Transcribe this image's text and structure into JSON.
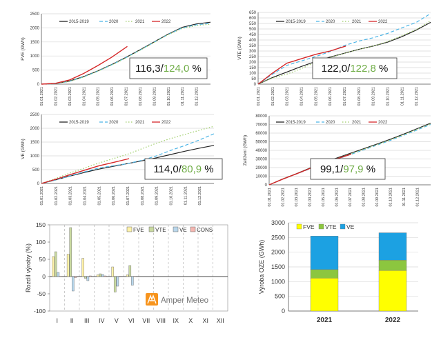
{
  "colors": {
    "s2015": "#222222",
    "s2020": "#4bb4e6",
    "s2021": "#9ccc65",
    "s2022": "#d62728",
    "fve_bar": "#fff2a8",
    "vte_bar": "#c9d9a0",
    "ve_bar": "#b9d7ec",
    "cons_bar": "#f5b7b1",
    "stack_fve": "#ffff00",
    "stack_vte": "#8cc63f",
    "stack_ve": "#1ca1e2",
    "good": "#70ad47",
    "logo": "#f7941d"
  },
  "chart_data": [
    {
      "id": "fve",
      "type": "line",
      "ylabel": "FVE (GWh)",
      "ylim": [
        0,
        2500
      ],
      "yticks": [
        0,
        500,
        1000,
        1500,
        2000,
        2500
      ],
      "xticks": [
        "01.01.2021",
        "01.02.2021",
        "01.03.2021",
        "01.04.2021",
        "01.05.2021",
        "01.06.2021",
        "01.07.2021",
        "01.08.2021",
        "01.09.2021",
        "01.10.2021",
        "01.11.2021",
        "01.12.2021"
      ],
      "series": [
        {
          "name": "2015-2019",
          "key": "s2015",
          "dash": "solid",
          "x": [
            0,
            1,
            2,
            3,
            4,
            5,
            6,
            7,
            8,
            9,
            10,
            11,
            12
          ],
          "values": [
            0,
            25,
            110,
            270,
            470,
            700,
            950,
            1220,
            1500,
            1780,
            2020,
            2140,
            2200
          ]
        },
        {
          "name": "2020",
          "key": "s2020",
          "dash": "dash",
          "x": [
            0,
            1,
            2,
            3,
            4,
            5,
            6,
            7,
            8,
            9,
            10,
            11,
            12
          ],
          "values": [
            0,
            20,
            100,
            260,
            460,
            690,
            940,
            1210,
            1490,
            1770,
            2000,
            2110,
            2160
          ]
        },
        {
          "name": "2021",
          "key": "s2021",
          "dash": "dot",
          "x": [
            0,
            1,
            2,
            3,
            4,
            5,
            6,
            7,
            8,
            9,
            10,
            11,
            12
          ],
          "values": [
            0,
            20,
            95,
            250,
            460,
            680,
            930,
            1200,
            1480,
            1760,
            1980,
            2080,
            2130
          ]
        },
        {
          "name": "2022",
          "key": "s2022",
          "dash": "solid",
          "x": [
            0,
            1,
            2,
            3,
            4,
            5,
            6.1
          ],
          "values": [
            0,
            30,
            150,
            380,
            660,
            960,
            1340
          ]
        }
      ],
      "ratio_a": "116,3",
      "ratio_b": "124,0",
      "ratio_unit": "%"
    },
    {
      "id": "vte",
      "type": "line",
      "ylabel": "VTE (GWh)",
      "ylim": [
        0,
        650
      ],
      "yticks": [
        0,
        50,
        100,
        150,
        200,
        250,
        300,
        350,
        400,
        450,
        500,
        550,
        600,
        650
      ],
      "xticks": [
        "01.01.2021",
        "01.02.2021",
        "01.03.2021",
        "01.04.2021",
        "01.05.2021",
        "01.06.2021",
        "01.07.2021",
        "01.08.2021",
        "01.09.2021",
        "01.10.2021",
        "01.11.2021",
        "01.12.2021"
      ],
      "series": [
        {
          "name": "2015-2019",
          "key": "s2015",
          "dash": "solid",
          "x": [
            0,
            1,
            2,
            3,
            4,
            5,
            6,
            7,
            8,
            9,
            10,
            11,
            12
          ],
          "values": [
            0,
            60,
            110,
            160,
            205,
            245,
            280,
            315,
            345,
            380,
            430,
            490,
            560
          ]
        },
        {
          "name": "2020",
          "key": "s2020",
          "dash": "dash",
          "x": [
            0,
            1,
            2,
            3,
            4,
            5,
            6,
            7,
            8,
            9,
            10,
            11,
            12
          ],
          "values": [
            0,
            90,
            170,
            210,
            250,
            295,
            350,
            390,
            420,
            460,
            510,
            560,
            640
          ]
        },
        {
          "name": "2021",
          "key": "s2021",
          "dash": "dot",
          "x": [
            0,
            1,
            2,
            3,
            4,
            5,
            6,
            7,
            8,
            9,
            10,
            11,
            12
          ],
          "values": [
            0,
            55,
            90,
            140,
            200,
            240,
            280,
            315,
            345,
            385,
            440,
            495,
            575
          ]
        },
        {
          "name": "2022",
          "key": "s2022",
          "dash": "solid",
          "x": [
            0,
            1,
            2,
            3,
            4,
            5,
            6.1
          ],
          "values": [
            0,
            100,
            190,
            230,
            270,
            300,
            345
          ]
        }
      ],
      "ratio_a": "122,0",
      "ratio_b": "122,8",
      "ratio_unit": "%"
    },
    {
      "id": "ve",
      "type": "line",
      "ylabel": "VE (GWh)",
      "ylim": [
        0,
        2500
      ],
      "yticks": [
        0,
        500,
        1000,
        1500,
        2000,
        2500
      ],
      "xticks": [
        "01.01.2021",
        "01.02.2021",
        "01.03.2021",
        "01.04.2021",
        "01.05.2021",
        "01.06.2021",
        "01.07.2021",
        "01.08.2021",
        "01.09.2021",
        "01.10.2021",
        "01.11.2021",
        "01.12.2021"
      ],
      "series": [
        {
          "name": "2015-2019",
          "key": "s2015",
          "dash": "solid",
          "x": [
            0,
            1,
            2,
            3,
            4,
            5,
            6,
            7,
            8,
            9,
            10,
            11,
            12
          ],
          "values": [
            0,
            130,
            270,
            400,
            520,
            620,
            720,
            820,
            930,
            1050,
            1170,
            1280,
            1380
          ]
        },
        {
          "name": "2020",
          "key": "s2020",
          "dash": "dash",
          "x": [
            0,
            1,
            2,
            3,
            4,
            5,
            6,
            7,
            8,
            9,
            10,
            11,
            12
          ],
          "values": [
            0,
            130,
            280,
            420,
            560,
            640,
            720,
            840,
            1000,
            1200,
            1380,
            1580,
            1800
          ]
        },
        {
          "name": "2021",
          "key": "s2021",
          "dash": "dot",
          "x": [
            0,
            1,
            2,
            3,
            4,
            5,
            6,
            7,
            8,
            9,
            10,
            11,
            12
          ],
          "values": [
            0,
            180,
            380,
            560,
            740,
            900,
            1060,
            1260,
            1460,
            1630,
            1780,
            1930,
            2070
          ]
        },
        {
          "name": "2022",
          "key": "s2022",
          "dash": "solid",
          "x": [
            0,
            1,
            2,
            3,
            4,
            5,
            6.1
          ],
          "values": [
            0,
            150,
            320,
            480,
            640,
            760,
            900
          ]
        }
      ],
      "ratio_a": "114,0",
      "ratio_b": "80,9",
      "ratio_unit": "%"
    },
    {
      "id": "cons",
      "type": "line",
      "ylabel": "Zatížení (GWh)",
      "ylim": [
        0,
        80000
      ],
      "yticks": [
        0,
        10000,
        20000,
        30000,
        40000,
        50000,
        60000,
        70000,
        80000
      ],
      "xticks": [
        "01.01.2021",
        "01.02.2021",
        "01.03.2021",
        "01.04.2021",
        "01.05.2021",
        "01.06.2021",
        "01.07.2021",
        "01.08.2021",
        "01.09.2021",
        "01.10.2021",
        "01.11.2021",
        "01.12.2021"
      ],
      "series": [
        {
          "name": "2015-2019",
          "key": "s2015",
          "dash": "solid",
          "x": [
            0,
            1,
            2,
            3,
            4,
            5,
            6,
            7,
            8,
            9,
            10,
            11,
            12
          ],
          "values": [
            0,
            6700,
            12800,
            19300,
            25300,
            31000,
            36400,
            41800,
            47300,
            52900,
            58900,
            65200,
            71500
          ]
        },
        {
          "name": "2020",
          "key": "s2020",
          "dash": "dash",
          "x": [
            0,
            1,
            2,
            3,
            4,
            5,
            6,
            7,
            8,
            9,
            10,
            11,
            12
          ],
          "values": [
            0,
            6500,
            12400,
            18400,
            24000,
            29600,
            35000,
            40500,
            46000,
            51600,
            57500,
            63700,
            70000
          ]
        },
        {
          "name": "2021",
          "key": "s2021",
          "dash": "dot",
          "x": [
            0,
            1,
            2,
            3,
            4,
            5,
            6,
            7,
            8,
            9,
            10,
            11,
            12
          ],
          "values": [
            0,
            6800,
            12700,
            18900,
            24700,
            30300,
            35700,
            41100,
            46600,
            52200,
            58200,
            64500,
            70800
          ]
        },
        {
          "name": "2022",
          "key": "s2022",
          "dash": "solid",
          "x": [
            0,
            1,
            2,
            3,
            4,
            5,
            6.1
          ],
          "values": [
            0,
            6600,
            12600,
            18800,
            24500,
            30100,
            35600
          ]
        }
      ],
      "ratio_a": "99,1",
      "ratio_b": "97,9",
      "ratio_unit": "%"
    },
    {
      "id": "diff",
      "type": "bar",
      "ylabel": "Rozdíl výroby (%)",
      "ylim": [
        -100,
        150
      ],
      "yticks": [
        -100,
        -50,
        0,
        50,
        100,
        150
      ],
      "categories": [
        "I",
        "II",
        "III",
        "IV",
        "V",
        "VI",
        "VII",
        "VIII",
        "IX",
        "X",
        "XI",
        "XII"
      ],
      "series": [
        {
          "name": "FVE",
          "key": "fve_bar",
          "values": [
            58,
            65,
            53,
            5,
            28,
            5,
            null,
            null,
            null,
            null,
            null,
            null
          ]
        },
        {
          "name": "VTE",
          "key": "vte_bar",
          "values": [
            72,
            142,
            -5,
            8,
            -45,
            32,
            null,
            null,
            null,
            null,
            null,
            null
          ]
        },
        {
          "name": "VE",
          "key": "ve_bar",
          "values": [
            12,
            -42,
            -12,
            6,
            -28,
            -25,
            null,
            null,
            null,
            null,
            null,
            null
          ]
        },
        {
          "name": "CONS",
          "key": "cons_bar",
          "values": [
            1,
            -3,
            2,
            2,
            -1,
            1,
            null,
            null,
            null,
            null,
            null,
            null
          ]
        }
      ],
      "logo_text": "Amper Meteo"
    },
    {
      "id": "total",
      "type": "bar",
      "stacked": true,
      "ylabel": "Výroba OZE (GWh)",
      "ylim": [
        0,
        3000
      ],
      "yticks": [
        0,
        500,
        1000,
        1500,
        2000,
        2500,
        3000
      ],
      "categories": [
        "2021",
        "2022"
      ],
      "series": [
        {
          "name": "FVE",
          "key": "stack_fve",
          "values": [
            1120,
            1380
          ]
        },
        {
          "name": "VTE",
          "key": "stack_vte",
          "values": [
            290,
            350
          ]
        },
        {
          "name": "VE",
          "key": "stack_ve",
          "values": [
            1140,
            930
          ]
        }
      ]
    }
  ]
}
